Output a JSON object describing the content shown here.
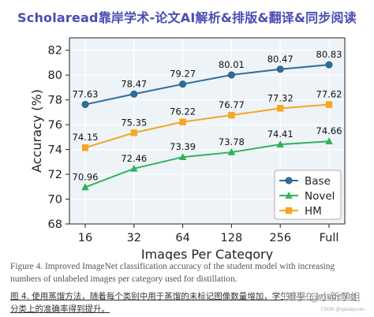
{
  "banner": {
    "text": "Scholaread靠岸学术-论文AI解析&排版&翻译&同步阅读"
  },
  "caption": {
    "en": "Figure 4. Improved ImageNet classification accuracy of the student model with increasing numbers of unlabeled images per category used for distillation.",
    "cn": "图 4. 使用蒸馏方法，随着每个类别中用于蒸馏的未标记图像数量增加，学生模型在 ImageNet 分类上的准确率得到提升。"
  },
  "watermark": {
    "text": "知乎 @小新学姐",
    "small": "CSDN @qaisayuan"
  },
  "colors": {
    "base": "#2c6e9e",
    "novel": "#2fb35a",
    "hm": "#f5a623",
    "plot_bg": "#eef3f8",
    "grid": "#ffffff",
    "banner": "#4b4bb4"
  },
  "chart_data": {
    "type": "line",
    "xlabel": "Images Per Category",
    "ylabel": "Accuracy (%)",
    "categories": [
      "16",
      "32",
      "64",
      "128",
      "256",
      "Full"
    ],
    "ylim": [
      68,
      83
    ],
    "yticks": [
      68,
      70,
      72,
      74,
      76,
      78,
      80,
      82
    ],
    "grid": true,
    "legend_position": "lower-right",
    "series": [
      {
        "name": "Base",
        "marker": "circle",
        "color": "#2c6e9e",
        "values": [
          77.63,
          78.47,
          79.27,
          80.01,
          80.47,
          80.83
        ],
        "labels": [
          "77.63",
          "78.47",
          "79.27",
          "80.01",
          "80.47",
          "80.83"
        ]
      },
      {
        "name": "HM",
        "marker": "square",
        "color": "#f5a623",
        "values": [
          74.15,
          75.35,
          76.22,
          76.77,
          77.32,
          77.62
        ],
        "labels": [
          "74.15",
          "75.35",
          "76.22",
          "76.77",
          "77.32",
          "77.62"
        ]
      },
      {
        "name": "Novel",
        "marker": "triangle",
        "color": "#2fb35a",
        "values": [
          70.96,
          72.46,
          73.39,
          73.78,
          74.41,
          74.66
        ],
        "labels": [
          "70.96",
          "72.46",
          "73.39",
          "73.78",
          "74.41",
          "74.66"
        ]
      }
    ],
    "legend_order": [
      "Base",
      "Novel",
      "HM"
    ]
  }
}
